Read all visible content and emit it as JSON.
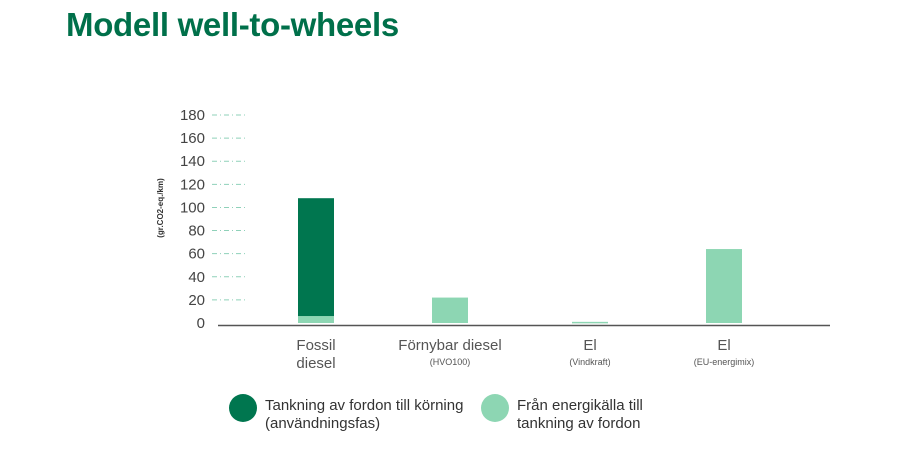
{
  "title": "Modell well-to-wheels",
  "colors": {
    "dark": "#00764f",
    "light": "#8dd6b3",
    "grid": "#8fd1b9",
    "axis": "#555555"
  },
  "chart_data": {
    "type": "bar",
    "stacked": true,
    "ylabel": "(gr.CO2-eq./km)",
    "ylim": [
      0,
      180
    ],
    "yticks": [
      0,
      20,
      40,
      60,
      80,
      100,
      120,
      140,
      160,
      180
    ],
    "categories": [
      {
        "main": [
          "Fossil",
          "diesel"
        ],
        "sub": ""
      },
      {
        "main": [
          "Förnybar diesel"
        ],
        "sub": "(HVO100)"
      },
      {
        "main": [
          "El"
        ],
        "sub": "(Vindkraft)"
      },
      {
        "main": [
          "El"
        ],
        "sub": "(EU-energimix)"
      }
    ],
    "series": [
      {
        "name": "Från energikälla till tankning av fordon",
        "color": "#8dd6b3",
        "values": [
          6,
          22,
          1,
          64
        ]
      },
      {
        "name": "Tankning av fordon till körning (användningsfas)",
        "color": "#00764f",
        "values": [
          102,
          0,
          0,
          0
        ]
      }
    ],
    "legend": [
      {
        "label": "Tankning av fordon till körning (användningsfas)",
        "color": "#00764f"
      },
      {
        "label": "Från energikälla till tankning av fordon",
        "color": "#8dd6b3"
      }
    ]
  }
}
